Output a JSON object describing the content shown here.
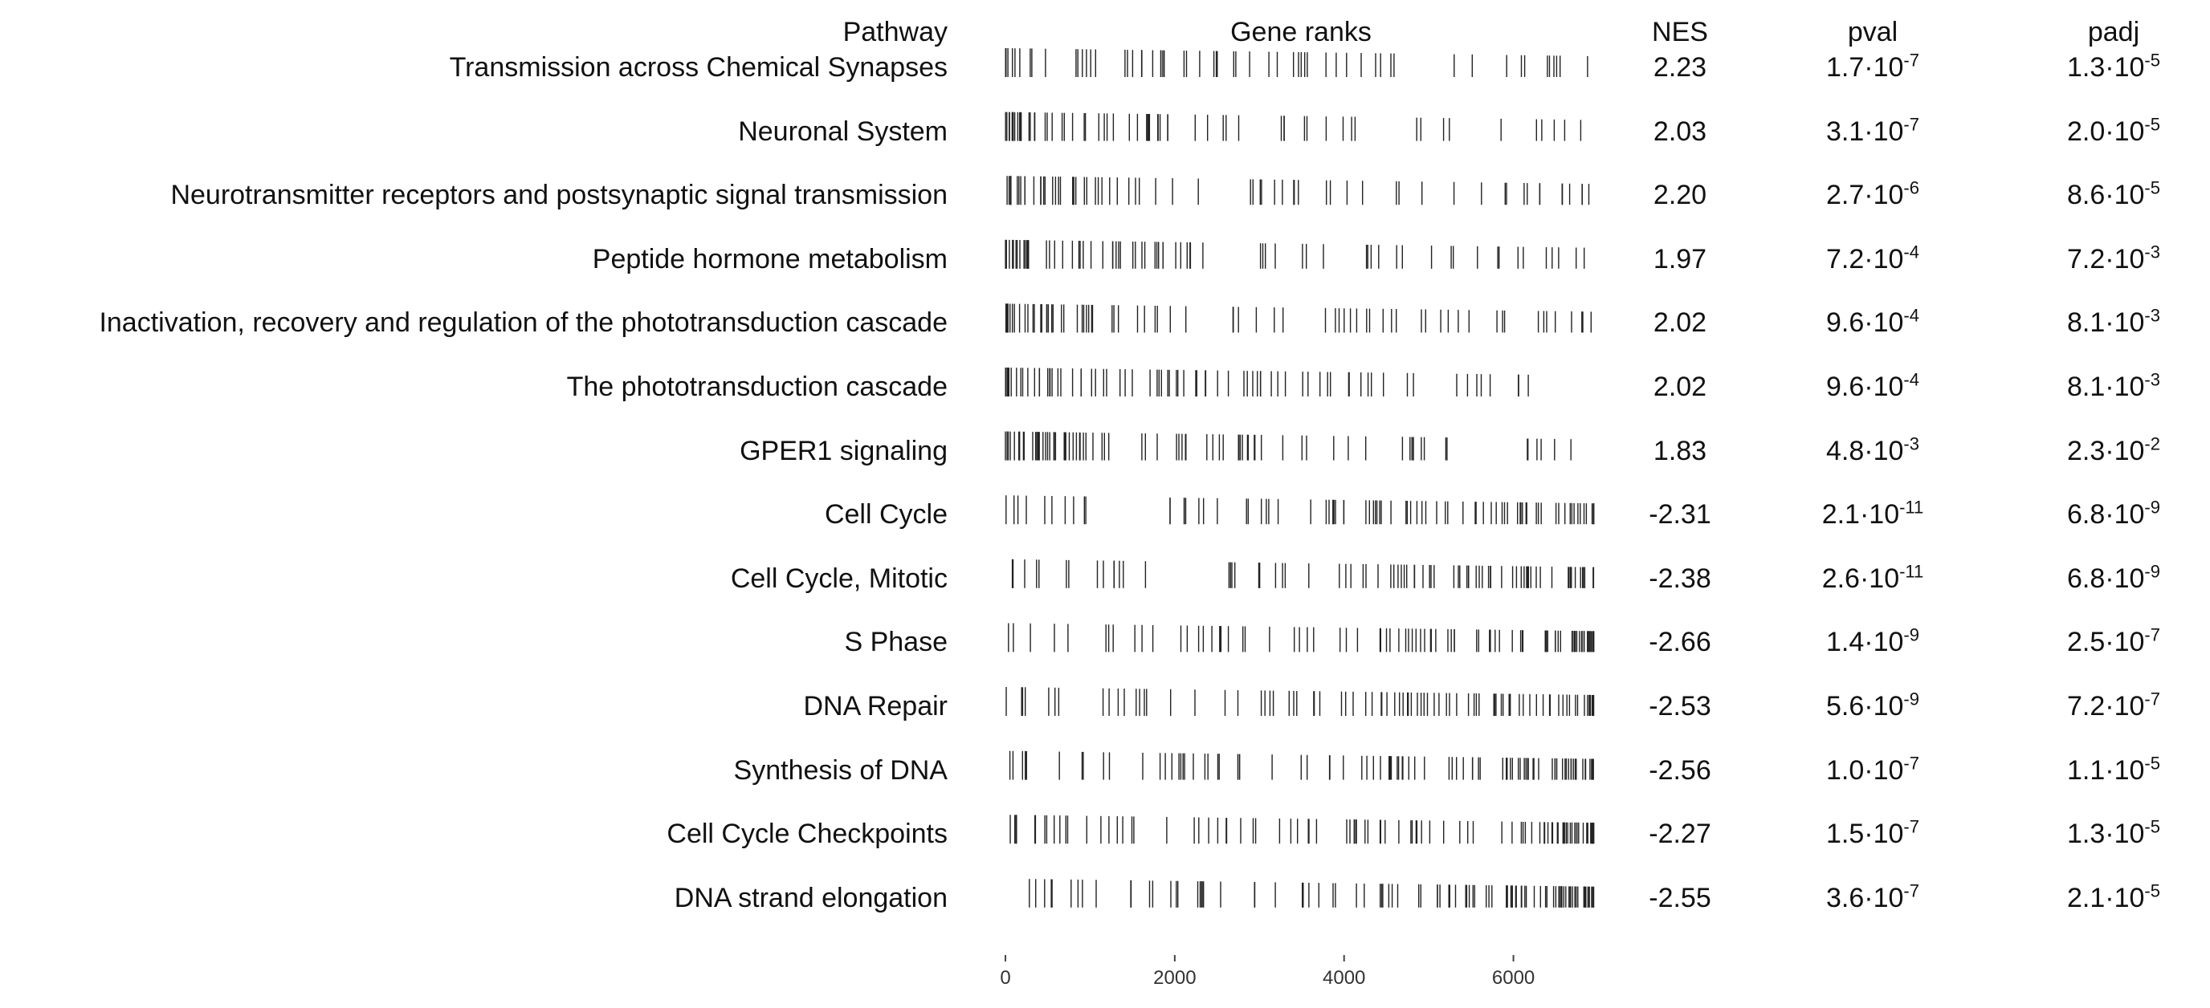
{
  "headers": {
    "pathway": "Pathway",
    "gene_ranks": "Gene ranks",
    "nes": "NES",
    "pval": "pval",
    "padj": "padj"
  },
  "chart_data": {
    "type": "table",
    "x_axis": {
      "ticks": [
        0,
        2000,
        4000,
        6000
      ],
      "range": [
        0,
        7000
      ]
    },
    "rows": [
      {
        "pathway": "Transmission across Chemical Synapses",
        "direction": "up",
        "nes": "2.23",
        "pval": {
          "mant": "1.7",
          "exp": "-7"
        },
        "padj": {
          "mant": "1.3",
          "exp": "-5"
        }
      },
      {
        "pathway": "Neuronal System",
        "direction": "up",
        "nes": "2.03",
        "pval": {
          "mant": "3.1",
          "exp": "-7"
        },
        "padj": {
          "mant": "2.0",
          "exp": "-5"
        }
      },
      {
        "pathway": "Neurotransmitter receptors and postsynaptic signal transmission",
        "direction": "up",
        "nes": "2.20",
        "pval": {
          "mant": "2.7",
          "exp": "-6"
        },
        "padj": {
          "mant": "8.6",
          "exp": "-5"
        }
      },
      {
        "pathway": "Peptide hormone metabolism",
        "direction": "up",
        "nes": "1.97",
        "pval": {
          "mant": "7.2",
          "exp": "-4"
        },
        "padj": {
          "mant": "7.2",
          "exp": "-3"
        }
      },
      {
        "pathway": "Inactivation, recovery and regulation of the phototransduction cascade",
        "direction": "up",
        "nes": "2.02",
        "pval": {
          "mant": "9.6",
          "exp": "-4"
        },
        "padj": {
          "mant": "8.1",
          "exp": "-3"
        }
      },
      {
        "pathway": "The phototransduction cascade",
        "direction": "up",
        "nes": "2.02",
        "pval": {
          "mant": "9.6",
          "exp": "-4"
        },
        "padj": {
          "mant": "8.1",
          "exp": "-3"
        }
      },
      {
        "pathway": "GPER1 signaling",
        "direction": "up",
        "nes": "1.83",
        "pval": {
          "mant": "4.8",
          "exp": "-3"
        },
        "padj": {
          "mant": "2.3",
          "exp": "-2"
        }
      },
      {
        "pathway": "Cell Cycle",
        "direction": "down",
        "nes": "-2.31",
        "pval": {
          "mant": "2.1",
          "exp": "-11"
        },
        "padj": {
          "mant": "6.8",
          "exp": "-9"
        }
      },
      {
        "pathway": "Cell Cycle, Mitotic",
        "direction": "down",
        "nes": "-2.38",
        "pval": {
          "mant": "2.6",
          "exp": "-11"
        },
        "padj": {
          "mant": "6.8",
          "exp": "-9"
        }
      },
      {
        "pathway": "S Phase",
        "direction": "down",
        "nes": "-2.66",
        "pval": {
          "mant": "1.4",
          "exp": "-9"
        },
        "padj": {
          "mant": "2.5",
          "exp": "-7"
        }
      },
      {
        "pathway": "DNA Repair",
        "direction": "down",
        "nes": "-2.53",
        "pval": {
          "mant": "5.6",
          "exp": "-9"
        },
        "padj": {
          "mant": "7.2",
          "exp": "-7"
        }
      },
      {
        "pathway": "Synthesis of DNA",
        "direction": "down",
        "nes": "-2.56",
        "pval": {
          "mant": "1.0",
          "exp": "-7"
        },
        "padj": {
          "mant": "1.1",
          "exp": "-5"
        }
      },
      {
        "pathway": "Cell Cycle Checkpoints",
        "direction": "down",
        "nes": "-2.27",
        "pval": {
          "mant": "1.5",
          "exp": "-7"
        },
        "padj": {
          "mant": "1.3",
          "exp": "-5"
        }
      },
      {
        "pathway": "DNA strand elongation",
        "direction": "down",
        "nes": "-2.55",
        "pval": {
          "mant": "3.6",
          "exp": "-7"
        },
        "padj": {
          "mant": "2.1",
          "exp": "-5"
        }
      }
    ]
  }
}
